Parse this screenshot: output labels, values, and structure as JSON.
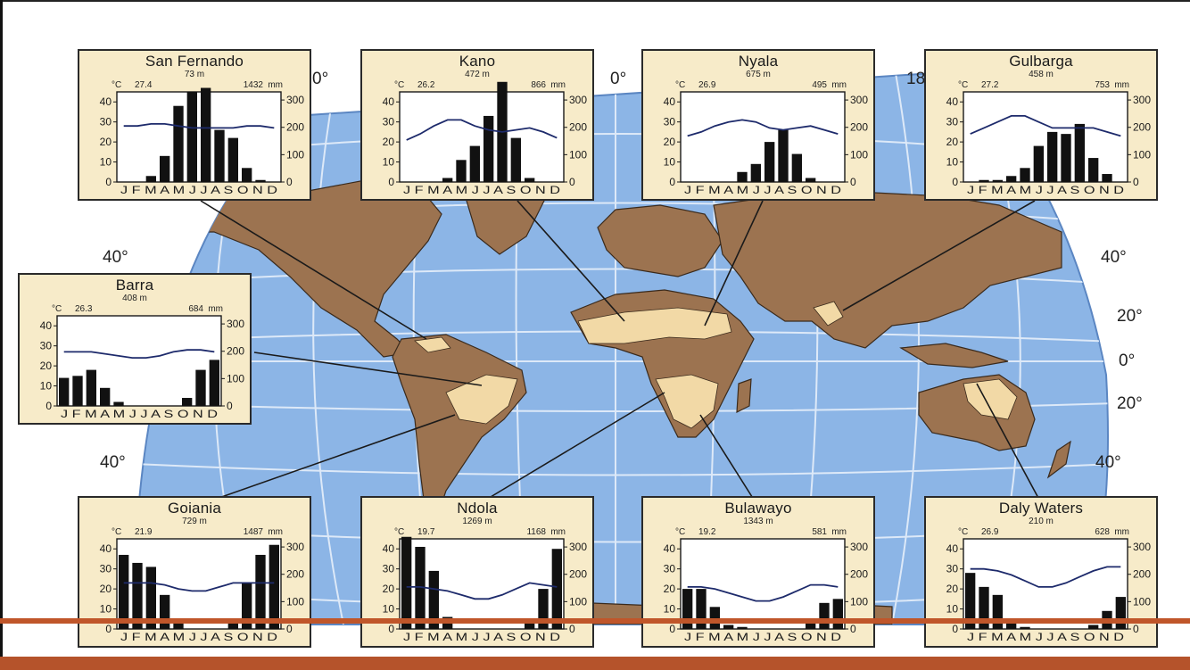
{
  "map": {
    "latitude_labels_left": [
      "40°",
      "40°"
    ],
    "latitude_labels_right": [
      "40°",
      "20°",
      "0°",
      "20°",
      "40°"
    ],
    "longitude_labels": [
      "0°",
      "0°",
      "18"
    ],
    "colors": {
      "ocean": "#8cb5e6",
      "land": "#9c7350",
      "savanna": "#f2d9a6",
      "grid": "#dce8f8",
      "box_fill": "#f7ebc9",
      "bottom_bar": "#b5532b"
    }
  },
  "climate_charts": [
    {
      "station": "San Fernando",
      "elevation": "73 m",
      "temp": "27.4",
      "precip": "1432",
      "temp_unit": "°C",
      "precip_unit": "mm",
      "precip_monthly": [
        0,
        0,
        3,
        13,
        38,
        45,
        47,
        26,
        22,
        7,
        1,
        0
      ],
      "temp_monthly": [
        28,
        28,
        29,
        29,
        28,
        27,
        27,
        27,
        27,
        28,
        28,
        27
      ]
    },
    {
      "station": "Kano",
      "elevation": "472 m",
      "temp": "26.2",
      "precip": "866",
      "temp_unit": "°C",
      "precip_unit": "mm",
      "precip_monthly": [
        0,
        0,
        0,
        2,
        11,
        18,
        33,
        50,
        22,
        2,
        0,
        0
      ],
      "temp_monthly": [
        21,
        24,
        28,
        31,
        31,
        28,
        26,
        25,
        26,
        27,
        25,
        22
      ]
    },
    {
      "station": "Nyala",
      "elevation": "675 m",
      "temp": "26.9",
      "precip": "495",
      "temp_unit": "°C",
      "precip_unit": "mm",
      "precip_monthly": [
        0,
        0,
        0,
        0,
        5,
        9,
        20,
        26,
        14,
        2,
        0,
        0
      ],
      "temp_monthly": [
        23,
        25,
        28,
        30,
        31,
        30,
        27,
        26,
        27,
        28,
        26,
        24
      ]
    },
    {
      "station": "Gulbarga",
      "elevation": "458 m",
      "temp": "27.2",
      "precip": "753",
      "temp_unit": "°C",
      "precip_unit": "mm",
      "precip_monthly": [
        0,
        1,
        1,
        3,
        7,
        18,
        25,
        24,
        29,
        12,
        4,
        0
      ],
      "temp_monthly": [
        24,
        27,
        30,
        33,
        33,
        30,
        27,
        27,
        27,
        27,
        25,
        23
      ]
    },
    {
      "station": "Barra",
      "elevation": "408 m",
      "temp": "26.3",
      "precip": "684",
      "temp_unit": "°C",
      "precip_unit": "mm",
      "precip_monthly": [
        14,
        15,
        18,
        9,
        2,
        0,
        0,
        0,
        0,
        4,
        18,
        23
      ],
      "temp_monthly": [
        27,
        27,
        27,
        26,
        25,
        24,
        24,
        25,
        27,
        28,
        28,
        27
      ]
    },
    {
      "station": "Goiania",
      "elevation": "729 m",
      "temp": "21.9",
      "precip": "1487",
      "temp_unit": "°C",
      "precip_unit": "mm",
      "precip_monthly": [
        37,
        33,
        31,
        17,
        4,
        0,
        0,
        0,
        5,
        23,
        37,
        42
      ],
      "temp_monthly": [
        23,
        23,
        23,
        22,
        20,
        19,
        19,
        21,
        23,
        23,
        23,
        23
      ]
    },
    {
      "station": "Ndola",
      "elevation": "1269 m",
      "temp": "19.7",
      "precip": "1168",
      "temp_unit": "°C",
      "precip_unit": "mm",
      "precip_monthly": [
        46,
        41,
        29,
        6,
        0,
        0,
        0,
        0,
        0,
        3,
        20,
        40
      ],
      "temp_monthly": [
        21,
        21,
        20,
        19,
        17,
        15,
        15,
        17,
        20,
        23,
        22,
        21
      ]
    },
    {
      "station": "Bulawayo",
      "elevation": "1343 m",
      "temp": "19.2",
      "precip": "581",
      "temp_unit": "°C",
      "precip_unit": "mm",
      "precip_monthly": [
        20,
        20,
        11,
        2,
        1,
        0,
        0,
        0,
        0,
        3,
        13,
        15
      ],
      "temp_monthly": [
        21,
        21,
        20,
        18,
        16,
        14,
        14,
        16,
        19,
        22,
        22,
        21
      ]
    },
    {
      "station": "Daly Waters",
      "elevation": "210 m",
      "temp": "26.9",
      "precip": "628",
      "temp_unit": "°C",
      "precip_unit": "mm",
      "precip_monthly": [
        28,
        21,
        17,
        3,
        1,
        0,
        0,
        0,
        0,
        2,
        9,
        16
      ],
      "temp_monthly": [
        30,
        30,
        29,
        27,
        24,
        21,
        21,
        23,
        26,
        29,
        31,
        31
      ]
    }
  ],
  "chart_axes": {
    "temp_ticks": [
      "40",
      "30",
      "20",
      "10",
      "0"
    ],
    "precip_ticks": [
      "300",
      "200",
      "100",
      "0"
    ],
    "month_letters": "J F M A M J J A S O N D"
  }
}
